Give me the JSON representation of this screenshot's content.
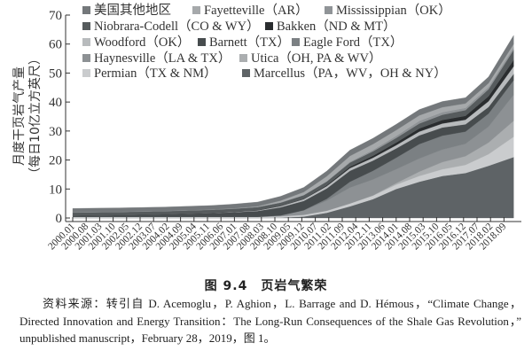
{
  "chart_data": {
    "type": "area",
    "stacked": true,
    "title": "",
    "xlabel": "",
    "ylabel": "月度干页岩气产量",
    "ylabel_unit": "（每日10亿立方英尺）",
    "ylim": [
      0,
      70
    ],
    "yticks": [
      0,
      10,
      20,
      30,
      40,
      50,
      60,
      70
    ],
    "grid": false,
    "legend_placement": "top-left",
    "xticks": [
      "2000.01",
      "2000.08",
      "2001.03",
      "2001.10",
      "2002.05",
      "2002.12",
      "2003.07",
      "2004.02",
      "2004.09",
      "2005.04",
      "2005.11",
      "2006.06",
      "2007.01",
      "2007.08",
      "2008.03",
      "2008.10",
      "2009.05",
      "2009.12",
      "2010.07",
      "2011.02",
      "2011.09",
      "2012.04",
      "2012.11",
      "2013.06",
      "2014.01",
      "2014.08",
      "2015.03",
      "2015.10",
      "2016.05",
      "2016.12",
      "2017.07",
      "2018.02",
      "2018.09"
    ],
    "x": [
      "2000.01",
      "2002.01",
      "2004.01",
      "2006.01",
      "2007.01",
      "2008.01",
      "2009.01",
      "2010.01",
      "2011.01",
      "2012.01",
      "2013.01",
      "2014.01",
      "2015.01",
      "2016.01",
      "2017.01",
      "2018.01",
      "2019.02"
    ],
    "series": [
      {
        "name": "Marcellus（PA，WV，OH & NY）",
        "color": "#5e6366",
        "values": [
          0,
          0,
          0,
          0,
          0,
          0,
          0.1,
          0.5,
          1.8,
          4.0,
          6.5,
          10,
          12.5,
          14.5,
          15.5,
          18,
          21
        ]
      },
      {
        "name": "Permian（TX & NM）",
        "color": "#caccce",
        "values": [
          0.4,
          0.4,
          0.4,
          0.4,
          0.4,
          0.4,
          0.5,
          0.6,
          0.7,
          1.0,
          1.2,
          1.5,
          2.0,
          2.3,
          2.8,
          4,
          7
        ]
      },
      {
        "name": "Utica（OH, PA & WV）",
        "color": "#abaeb0",
        "values": [
          0,
          0,
          0,
          0,
          0,
          0,
          0,
          0,
          0,
          0,
          0.1,
          0.5,
          1.5,
          2.5,
          3.0,
          4,
          5.5
        ]
      },
      {
        "name": "Haynesville（LA & TX）",
        "color": "#8d9194",
        "values": [
          0,
          0,
          0,
          0,
          0,
          0,
          0.3,
          1.5,
          3.5,
          5.5,
          5.5,
          4.8,
          4.5,
          4.3,
          4.3,
          5.5,
          9
        ]
      },
      {
        "name": "Eagle Ford（TX）",
        "color": "#7b8083",
        "values": [
          0,
          0,
          0,
          0,
          0,
          0,
          0,
          0.1,
          0.6,
          2.0,
          3.0,
          4.0,
          5.0,
          4.8,
          4.2,
          4.5,
          5
        ]
      },
      {
        "name": "Barnett（TX）",
        "color": "#474c4e",
        "values": [
          0.4,
          0.6,
          0.9,
          1.3,
          1.6,
          2.0,
          2.8,
          3.2,
          3.6,
          3.8,
          3.5,
          3.2,
          3.0,
          2.8,
          2.5,
          2.3,
          2.2
        ]
      },
      {
        "name": "Woodford（OK）",
        "color": "#b8bbbd",
        "values": [
          0,
          0,
          0,
          0.05,
          0.1,
          0.2,
          0.4,
          0.6,
          0.8,
          0.9,
          1.0,
          1.1,
          1.3,
          1.4,
          1.6,
          2.0,
          2.6
        ]
      },
      {
        "name": "Bakken（ND & MT）",
        "color": "#2a2d2f",
        "values": [
          0.05,
          0.05,
          0.05,
          0.05,
          0.05,
          0.05,
          0.1,
          0.15,
          0.3,
          0.5,
          0.7,
          0.9,
          1.1,
          1.2,
          1.3,
          1.7,
          2.2
        ]
      },
      {
        "name": "Niobrara-Codell（CO & WY）",
        "color": "#565b5d",
        "values": [
          1.0,
          1.0,
          1.0,
          1.0,
          1.05,
          1.1,
          1.1,
          1.2,
          1.3,
          1.4,
          1.5,
          1.6,
          1.7,
          1.8,
          2.0,
          2.4,
          3.5
        ]
      },
      {
        "name": "Mississippian（OK）",
        "color": "#909497",
        "values": [
          0.1,
          0.1,
          0.1,
          0.1,
          0.1,
          0.1,
          0.1,
          0.1,
          0.1,
          0.3,
          0.5,
          0.7,
          0.9,
          0.9,
          0.8,
          0.8,
          0.8
        ]
      },
      {
        "name": "Fayetteville（AR）",
        "color": "#a6a9ab",
        "values": [
          0,
          0,
          0,
          0,
          0.05,
          0.15,
          0.6,
          1.0,
          1.7,
          2.0,
          2.0,
          2.0,
          1.9,
          1.7,
          1.5,
          1.3,
          1.2
        ]
      },
      {
        "name": "美国其他地区",
        "color": "#74787b",
        "values": [
          1.35,
          1.35,
          1.35,
          1.4,
          1.45,
          1.5,
          1.5,
          1.6,
          1.8,
          2.0,
          2.0,
          2.0,
          2.0,
          2.0,
          2.0,
          2.2,
          3
        ]
      }
    ],
    "legend_order": [
      "美国其他地区",
      "Fayetteville（AR）",
      "Mississippian（OK）",
      "Niobrara-Codell（CO & WY）",
      "Bakken（ND & MT）",
      "Woodford（OK）",
      "Barnett（TX）",
      "Eagle Ford（TX）",
      "Haynesville（LA & TX）",
      "Utica（OH, PA & WV）",
      "Permian（TX & NM）",
      "Marcellus（PA，WV，OH & NY）"
    ]
  },
  "caption": {
    "title": "图 9.4　页岩气繁荣",
    "source": "资料来源：转引自 D. Acemoglu，P. Aghion，L. Barrage and D. Hémous，“Climate Change，Directed Innovation and Energy Transition：The Long-Run Consequences of the Shale Gas Revolution，” unpublished manuscript，February 28，2019，图 1。"
  }
}
